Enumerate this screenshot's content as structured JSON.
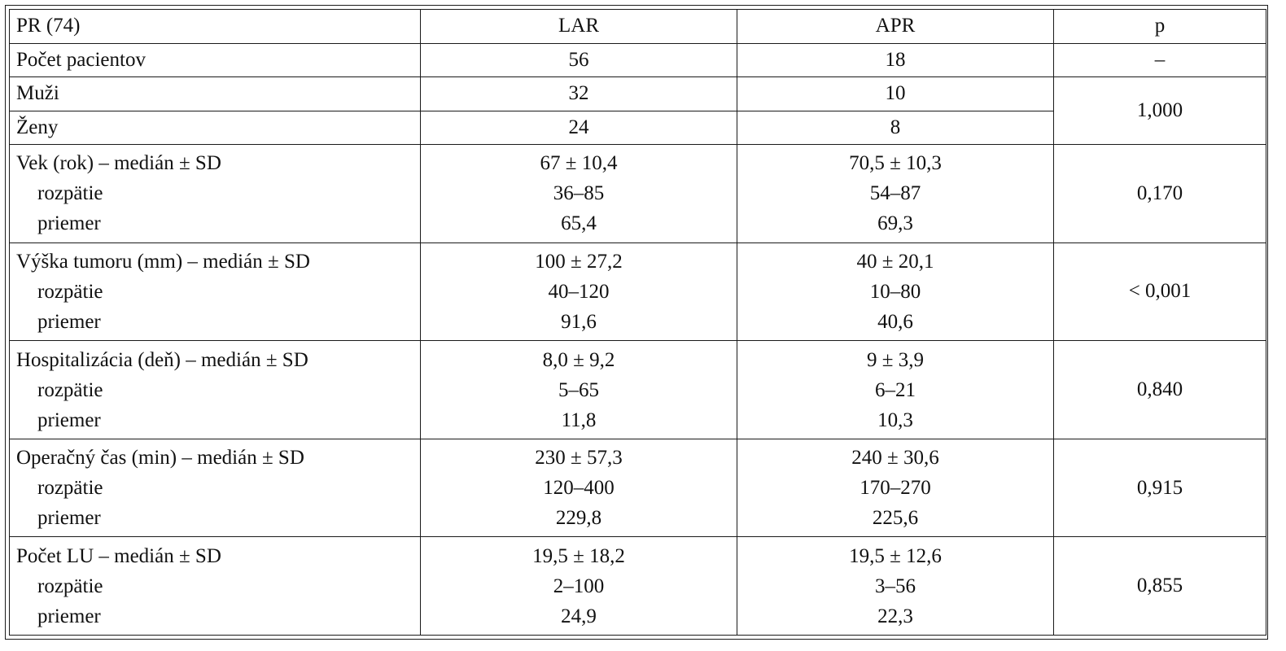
{
  "table": {
    "headers": [
      "PR (74)",
      "LAR",
      "APR",
      "p"
    ],
    "patient_count": {
      "label": "Počet pacientov",
      "lar": "56",
      "apr": "18",
      "p": "–"
    },
    "sex": {
      "p": "1,000",
      "rows": [
        {
          "label": "Muži",
          "lar": "32",
          "apr": "10"
        },
        {
          "label": "Ženy",
          "lar": "24",
          "apr": "8"
        }
      ]
    },
    "groups": [
      {
        "label": "Vek (rok) – medián ± SD",
        "lar": "67 ± 10,4",
        "apr": "70,5 ± 10,3",
        "p": "0,170",
        "sub": [
          {
            "label": "rozpätie",
            "lar": "36–85",
            "apr": "54–87"
          },
          {
            "label": "priemer",
            "lar": "65,4",
            "apr": "69,3"
          }
        ]
      },
      {
        "label": "Výška tumoru (mm) – medián ± SD",
        "lar": "100 ± 27,2",
        "apr": "40 ± 20,1",
        "p": "< 0,001",
        "sub": [
          {
            "label": "rozpätie",
            "lar": "40–120",
            "apr": "10–80"
          },
          {
            "label": "priemer",
            "lar": "91,6",
            "apr": "40,6"
          }
        ]
      },
      {
        "label": "Hospitalizácia (deň) – medián ± SD",
        "lar": "8,0 ± 9,2",
        "apr": "9 ± 3,9",
        "p": "0,840",
        "sub": [
          {
            "label": "rozpätie",
            "lar": "5–65",
            "apr": "6–21"
          },
          {
            "label": "priemer",
            "lar": "11,8",
            "apr": "10,3"
          }
        ]
      },
      {
        "label": "Operačný čas (min) – medián ± SD",
        "lar": "230 ± 57,3",
        "apr": "240 ± 30,6",
        "p": "0,915",
        "sub": [
          {
            "label": "rozpätie",
            "lar": "120–400",
            "apr": "170–270"
          },
          {
            "label": "priemer",
            "lar": "229,8",
            "apr": "225,6"
          }
        ]
      },
      {
        "label": "Počet LU – medián ± SD",
        "lar": "19,5 ± 18,2",
        "apr": "19,5 ± 12,6",
        "p": "0,855",
        "sub": [
          {
            "label": "rozpätie",
            "lar": "2–100",
            "apr": "3–56"
          },
          {
            "label": "priemer",
            "lar": "24,9",
            "apr": "22,3"
          }
        ]
      }
    ]
  }
}
